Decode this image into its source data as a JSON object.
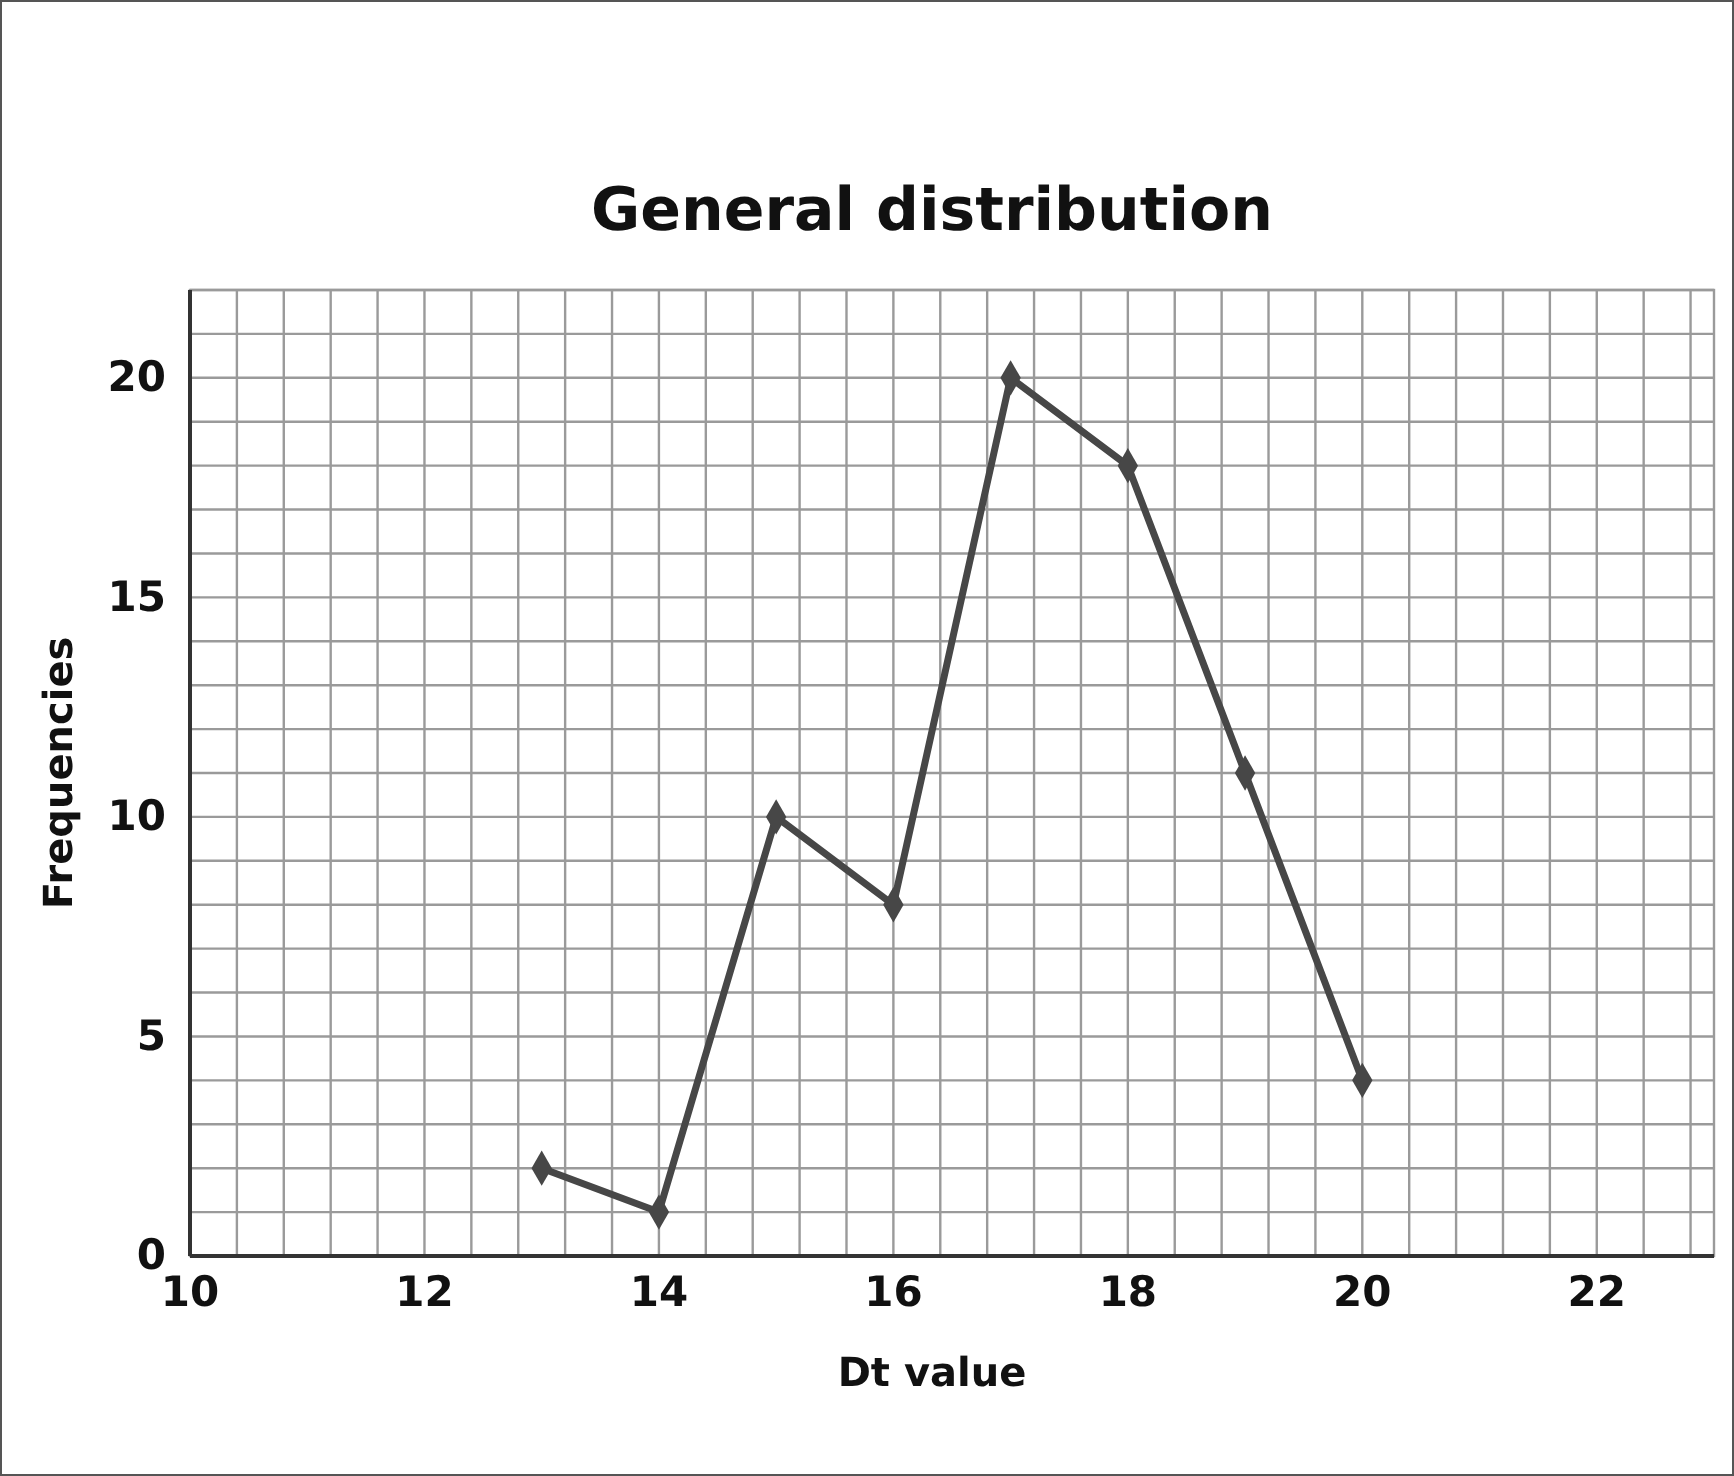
{
  "chart_data": {
    "type": "line",
    "title": "General distribution",
    "xlabel": "Dt value",
    "ylabel": "Frequencies",
    "x": [
      13,
      14,
      15,
      16,
      17,
      18,
      19,
      20
    ],
    "series": [
      {
        "color": "#474747",
        "values": [
          2,
          1,
          10,
          8,
          20,
          18,
          11,
          4
        ]
      }
    ],
    "xlim": [
      10,
      23
    ],
    "xticks": [
      10,
      {
        "value": 10.4,
        "label": null
      },
      {
        "value": 10.8,
        "label": null
      },
      {
        "value": 11.2,
        "label": null
      },
      {
        "value": 11.6,
        "label": null
      },
      12,
      {
        "value": 12.4,
        "label": null
      },
      {
        "value": 12.8,
        "label": null
      },
      {
        "value": 13.2,
        "label": null
      },
      {
        "value": 13.6,
        "label": null
      },
      14,
      {
        "value": 14.4,
        "label": null
      },
      {
        "value": 14.8,
        "label": null
      },
      {
        "value": 15.2,
        "label": null
      },
      {
        "value": 15.6,
        "label": null
      },
      16,
      {
        "value": 16.4,
        "label": null
      },
      {
        "value": 16.8,
        "label": null
      },
      {
        "value": 17.2,
        "label": null
      },
      {
        "value": 17.6,
        "label": null
      },
      18,
      {
        "value": 18.4,
        "label": null
      },
      {
        "value": 18.8,
        "label": null
      },
      {
        "value": 19.2,
        "label": null
      },
      {
        "value": 19.6,
        "label": null
      },
      20,
      {
        "value": 20.4,
        "label": null
      },
      {
        "value": 20.8,
        "label": null
      },
      {
        "value": 21.2,
        "label": null
      },
      {
        "value": 21.6,
        "label": null
      },
      22,
      {
        "value": 22.4,
        "label": null
      },
      {
        "value": 22.8,
        "label": null
      }
    ],
    "ylim": [
      0,
      22
    ],
    "yticks": [
      0,
      {
        "value": 1,
        "label": null
      },
      {
        "value": 2,
        "label": null
      },
      {
        "value": 3,
        "label": null
      },
      {
        "value": 4,
        "label": null
      },
      5,
      {
        "value": 6,
        "label": null
      },
      {
        "value": 7,
        "label": null
      },
      {
        "value": 8,
        "label": null
      },
      {
        "value": 9,
        "label": null
      },
      10,
      {
        "value": 11,
        "label": null
      },
      {
        "value": 12,
        "label": null
      },
      {
        "value": 13,
        "label": null
      },
      {
        "value": 14,
        "label": null
      },
      15,
      {
        "value": 16,
        "label": null
      },
      {
        "value": 17,
        "label": null
      },
      {
        "value": 18,
        "label": null
      },
      {
        "value": 19,
        "label": null
      },
      20,
      {
        "value": 21,
        "label": null
      },
      {
        "value": 22,
        "label": null
      }
    ],
    "grid": true,
    "marker": "diamond",
    "line_style": "solid"
  }
}
